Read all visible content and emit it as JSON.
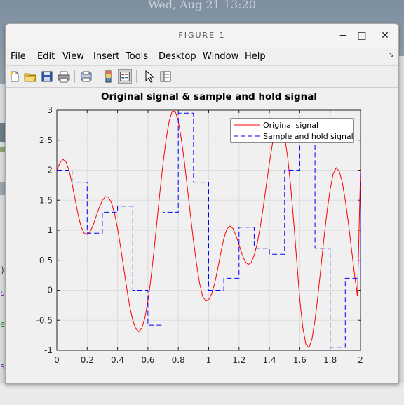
{
  "desktop": {
    "clock": "Wed, Aug 21  13:20",
    "left_fragments": [
      ")",
      "s",
      "e",
      "s"
    ]
  },
  "window": {
    "title": "FIGURE 1",
    "controls": {
      "minimize": "−",
      "maximize": "□",
      "close": "✕"
    }
  },
  "menubar": {
    "items": [
      "File",
      "Edit",
      "View",
      "Insert",
      "Tools",
      "Desktop",
      "Window",
      "Help"
    ],
    "arrow": "↘"
  },
  "toolbar": {
    "buttons": [
      "new-figure-icon",
      "open-file-icon",
      "save-icon",
      "print-icon",
      "print-preview-icon",
      "colorbar-icon",
      "legend-icon",
      "pointer-icon",
      "property-editor-icon"
    ]
  },
  "chart_data": {
    "type": "line",
    "title": "Original signal & sample and hold signal",
    "xlabel": "",
    "ylabel": "",
    "xlim": [
      0,
      2
    ],
    "ylim": [
      -1,
      3
    ],
    "xticks": [
      "0",
      "0.2",
      "0.4",
      "0.6",
      "0.8",
      "1",
      "1.2",
      "1.4",
      "1.6",
      "1.8",
      "2"
    ],
    "yticks": [
      "-1",
      "-0.5",
      "0",
      "0.5",
      "1",
      "1.5",
      "2",
      "2.5",
      "3"
    ],
    "grid": true,
    "legend_position": "top-right",
    "series": [
      {
        "name": "Original signal",
        "style": "solid",
        "color": "#ff0000",
        "x": [
          0,
          0.02,
          0.04,
          0.06,
          0.08,
          0.1,
          0.12,
          0.14,
          0.16,
          0.18,
          0.2,
          0.22,
          0.24,
          0.26,
          0.28,
          0.3,
          0.32,
          0.34,
          0.36,
          0.38,
          0.4,
          0.42,
          0.44,
          0.46,
          0.48,
          0.5,
          0.52,
          0.54,
          0.56,
          0.58,
          0.6,
          0.62,
          0.64,
          0.66,
          0.68,
          0.7,
          0.72,
          0.74,
          0.76,
          0.78,
          0.8,
          0.82,
          0.84,
          0.86,
          0.88,
          0.9,
          0.92,
          0.94,
          0.96,
          0.98,
          1,
          1.02,
          1.04,
          1.06,
          1.08,
          1.1,
          1.12,
          1.14,
          1.16,
          1.18,
          1.2,
          1.22,
          1.24,
          1.26,
          1.28,
          1.3,
          1.32,
          1.34,
          1.36,
          1.38,
          1.4,
          1.42,
          1.44,
          1.46,
          1.48,
          1.5,
          1.52,
          1.54,
          1.56,
          1.58,
          1.6,
          1.62,
          1.64,
          1.66,
          1.68,
          1.7,
          1.72,
          1.74,
          1.76,
          1.78,
          1.8,
          1.82,
          1.84,
          1.86,
          1.88,
          1.9,
          1.92,
          1.94,
          1.96,
          1.98,
          2
        ],
        "y": [
          2.0,
          2.12,
          2.18,
          2.14,
          2.0,
          1.78,
          1.52,
          1.26,
          1.06,
          0.95,
          0.93,
          0.98,
          1.09,
          1.24,
          1.38,
          1.5,
          1.56,
          1.55,
          1.46,
          1.28,
          1.03,
          0.72,
          0.38,
          0.04,
          -0.27,
          -0.5,
          -0.64,
          -0.69,
          -0.63,
          -0.46,
          -0.18,
          0.2,
          0.66,
          1.16,
          1.66,
          2.12,
          2.52,
          2.82,
          2.98,
          2.98,
          2.82,
          2.52,
          2.14,
          1.7,
          1.26,
          0.82,
          0.44,
          0.12,
          -0.1,
          -0.18,
          -0.16,
          -0.06,
          0.12,
          0.36,
          0.62,
          0.86,
          1.02,
          1.07,
          1.03,
          0.91,
          0.76,
          0.6,
          0.48,
          0.43,
          0.46,
          0.58,
          0.78,
          1.06,
          1.39,
          1.76,
          2.12,
          2.44,
          2.66,
          2.77,
          2.74,
          2.56,
          2.22,
          1.74,
          1.15,
          0.49,
          -0.15,
          -0.62,
          -0.9,
          -0.96,
          -0.82,
          -0.5,
          -0.08,
          0.4,
          0.88,
          1.32,
          1.68,
          1.94,
          2.04,
          1.98,
          1.8,
          1.5,
          1.12,
          0.7,
          0.28,
          -0.1,
          2.0
        ]
      },
      {
        "name": "Sample and hold signal",
        "style": "dashed",
        "color": "#0000ff",
        "x": [
          0,
          0.1,
          0.2,
          0.3,
          0.4,
          0.5,
          0.6,
          0.7,
          0.8,
          0.9,
          1.0,
          1.1,
          1.2,
          1.3,
          1.4,
          1.5,
          1.6,
          1.7,
          1.8,
          1.9
        ],
        "y": [
          2.0,
          1.8,
          0.95,
          1.3,
          1.4,
          0.0,
          -0.58,
          1.3,
          2.95,
          1.8,
          0.0,
          0.2,
          1.05,
          0.7,
          0.6,
          2.0,
          2.57,
          0.7,
          -0.95,
          0.2
        ],
        "hold_until": 2.0,
        "final_value": 2.0
      }
    ]
  }
}
